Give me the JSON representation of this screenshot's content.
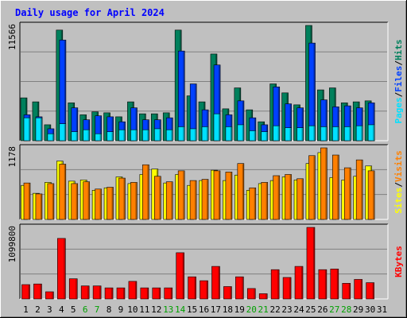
{
  "title": "Daily usage for April 2024",
  "colors": {
    "background": "#C0C0C0",
    "plot_bg": "#C0C0C0",
    "title": "#0000FF",
    "hits": "#00805C",
    "files": "#0040FF",
    "pages": "#00E0FF",
    "sites": "#FFFF00",
    "visits": "#FF8000",
    "kbytes": "#FF0000",
    "weekend_day": "#00A000",
    "weekday": "#000000"
  },
  "days": [
    "1",
    "2",
    "3",
    "4",
    "5",
    "6",
    "7",
    "8",
    "9",
    "10",
    "11",
    "12",
    "13",
    "14",
    "15",
    "16",
    "17",
    "18",
    "19",
    "20",
    "21",
    "22",
    "23",
    "24",
    "25",
    "26",
    "27",
    "28",
    "29",
    "30",
    "31"
  ],
  "weekend_days": [
    "6",
    "7",
    "13",
    "14",
    "20",
    "21",
    "27",
    "28"
  ],
  "chart_data": [
    {
      "type": "bar",
      "name": "hits-files-pages",
      "ymax_label": "11566",
      "ylim": [
        0,
        11566
      ],
      "side_labels": [
        "Pages",
        "/",
        "Files",
        "/",
        "Hits"
      ],
      "series": [
        {
          "name": "Hits",
          "values": [
            4300,
            3900,
            1600,
            11100,
            3800,
            2600,
            2900,
            2800,
            2400,
            3900,
            2700,
            2700,
            2800,
            11100,
            4500,
            3900,
            8700,
            3200,
            5300,
            3100,
            1900,
            5700,
            4800,
            3600,
            11566,
            5100,
            5300,
            3800,
            3900,
            4000,
            null
          ]
        },
        {
          "name": "Files",
          "values": [
            2600,
            2400,
            1200,
            10100,
            3300,
            2100,
            2500,
            2400,
            1900,
            3300,
            2100,
            2100,
            2300,
            9000,
            5700,
            3100,
            7600,
            2600,
            4000,
            2300,
            1600,
            5400,
            3700,
            3300,
            9800,
            4100,
            3400,
            3500,
            3300,
            3800,
            null
          ]
        },
        {
          "name": "Pages",
          "values": [
            2300,
            2300,
            700,
            1700,
            900,
            1100,
            700,
            900,
            1100,
            1100,
            1100,
            1200,
            1100,
            1400,
            1200,
            1400,
            2700,
            1400,
            1600,
            1000,
            900,
            1500,
            1300,
            1300,
            1500,
            1400,
            1400,
            1400,
            1500,
            1600,
            null
          ]
        }
      ]
    },
    {
      "type": "bar",
      "name": "sites-visits",
      "ymax_label": "1178",
      "ylim": [
        0,
        1178
      ],
      "side_labels": [
        "Sites",
        "/",
        "Visits"
      ],
      "series": [
        {
          "name": "Sites",
          "values": [
            560,
            430,
            610,
            960,
            630,
            650,
            480,
            520,
            700,
            590,
            740,
            830,
            600,
            740,
            560,
            640,
            810,
            640,
            730,
            480,
            590,
            640,
            700,
            650,
            920,
            1100,
            690,
            650,
            710,
            880,
            null
          ]
        },
        {
          "name": "Visits",
          "values": [
            600,
            420,
            590,
            910,
            590,
            620,
            500,
            530,
            680,
            610,
            900,
            710,
            620,
            800,
            640,
            660,
            800,
            780,
            920,
            520,
            610,
            720,
            740,
            670,
            1050,
            1178,
            1060,
            850,
            980,
            800,
            null
          ]
        }
      ]
    },
    {
      "type": "bar",
      "name": "kbytes",
      "ymax_label": "1099800",
      "ylim": [
        0,
        1099800
      ],
      "side_labels": [
        "KBytes"
      ],
      "series": [
        {
          "name": "KBytes",
          "values": [
            220000,
            230000,
            110000,
            930000,
            310000,
            200000,
            200000,
            170000,
            170000,
            270000,
            170000,
            170000,
            170000,
            710000,
            340000,
            280000,
            500000,
            190000,
            340000,
            160000,
            80000,
            450000,
            330000,
            500000,
            1099800,
            450000,
            460000,
            240000,
            300000,
            250000,
            null
          ]
        }
      ]
    }
  ]
}
